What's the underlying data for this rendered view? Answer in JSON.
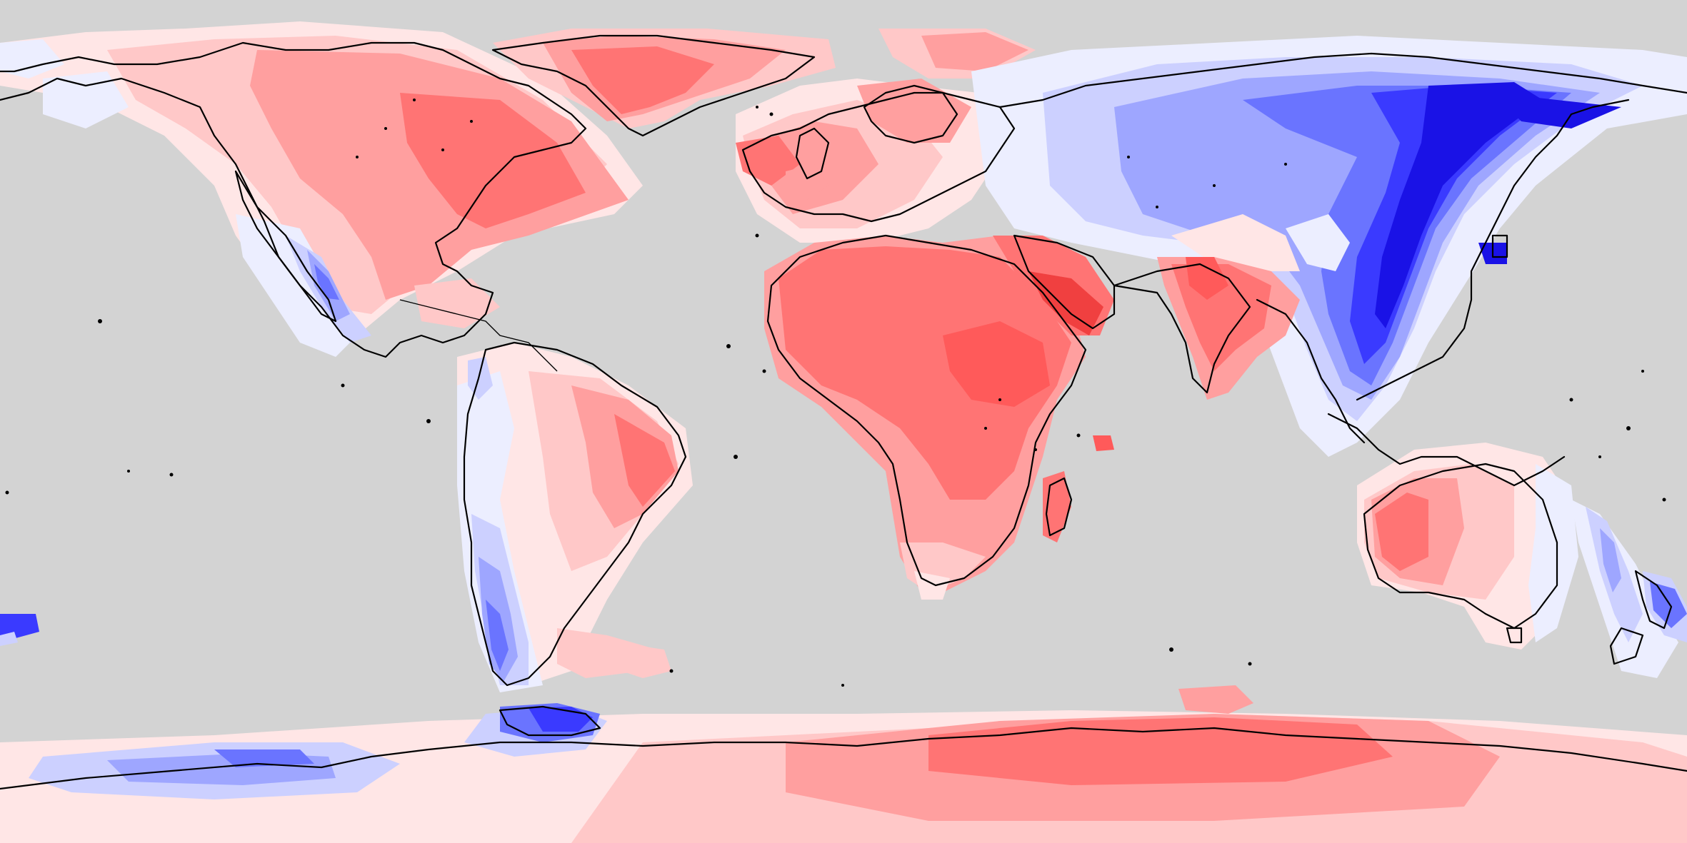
{
  "map": {
    "projection": "equirectangular",
    "extent": {
      "lon": [
        -180,
        180
      ],
      "lat": [
        -90,
        90
      ]
    },
    "colors": {
      "no_data": "#d3d3d3",
      "coastline": "#000000",
      "warm_1": "#ffe6e6",
      "warm_2": "#ffc8c8",
      "warm_3": "#ff9f9f",
      "warm_4": "#ff7474",
      "warm_5": "#ff5a5a",
      "warm_6": "#f04040",
      "cool_1": "#eceeff",
      "cool_2": "#ccd0ff",
      "cool_3": "#9ea6ff",
      "cool_4": "#6a74ff",
      "cool_5": "#3a3aff",
      "cool_6": "#1a12e6"
    }
  }
}
